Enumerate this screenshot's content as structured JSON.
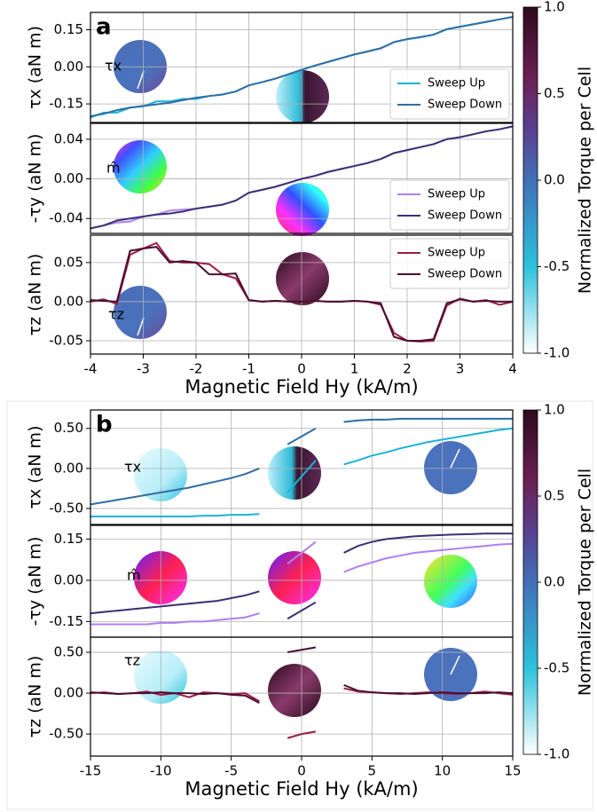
{
  "chart_data": [
    {
      "type": "line",
      "panel_label": "a",
      "ylabel": "τx (aN m)",
      "inset_label": "τx",
      "x": [
        -4,
        -3.75,
        -3.5,
        -3.25,
        -3,
        -2.75,
        -2.5,
        -2.25,
        -2,
        -1.75,
        -1.5,
        -1.25,
        -1,
        -0.75,
        -0.5,
        -0.25,
        0,
        0.25,
        0.5,
        0.75,
        1,
        1.25,
        1.5,
        1.75,
        2,
        2.25,
        2.5,
        2.75,
        3,
        3.25,
        3.5,
        3.75,
        4
      ],
      "series": [
        {
          "name": "Sweep Up",
          "color": "#1ab3d6",
          "values": [
            -0.205,
            -0.185,
            -0.185,
            -0.165,
            -0.16,
            -0.14,
            -0.14,
            -0.13,
            -0.13,
            -0.118,
            -0.112,
            -0.1,
            -0.075,
            -0.062,
            -0.048,
            -0.03,
            -0.012,
            0.005,
            0.02,
            0.035,
            0.05,
            0.062,
            0.075,
            0.1,
            0.112,
            0.12,
            0.13,
            0.152,
            0.162,
            0.172,
            0.182,
            0.192,
            0.202
          ]
        },
        {
          "name": "Sweep Down",
          "color": "#2e6ea6",
          "values": [
            -0.2,
            -0.19,
            -0.175,
            -0.165,
            -0.158,
            -0.152,
            -0.145,
            -0.135,
            -0.125,
            -0.118,
            -0.112,
            -0.1,
            -0.075,
            -0.062,
            -0.048,
            -0.03,
            -0.012,
            0.005,
            0.02,
            0.035,
            0.05,
            0.062,
            0.075,
            0.1,
            0.112,
            0.12,
            0.13,
            0.152,
            0.162,
            0.172,
            0.182,
            0.192,
            0.202
          ]
        }
      ],
      "xlim": [
        -4,
        4
      ],
      "xticks": [
        -4,
        -3,
        -2,
        -1,
        0,
        1,
        2,
        3,
        4
      ],
      "ylim": [
        -0.225,
        0.22
      ],
      "yticks": [
        -0.15,
        {
          "value": 0,
          "label": "0.00"
        },
        0.15
      ],
      "grid": true,
      "legend": "lower right",
      "colorbar": {
        "label": "Normalized Torque per Cell",
        "lim": [
          -1,
          1
        ],
        "ticks": [
          {
            "value": -1,
            "label": "-1.0"
          },
          -0.5,
          {
            "value": 0,
            "label": "0.0"
          },
          0.5,
          {
            "value": 1,
            "label": "1.0"
          }
        ]
      }
    },
    {
      "type": "line",
      "ylabel": "-τy (aN m)",
      "inset_label": "m̂",
      "x": [
        -4,
        -3.75,
        -3.5,
        -3.25,
        -3,
        -2.75,
        -2.5,
        -2.25,
        -2,
        -1.75,
        -1.5,
        -1.25,
        -1,
        -0.75,
        -0.5,
        -0.25,
        0,
        0.25,
        0.5,
        0.75,
        1,
        1.25,
        1.5,
        1.75,
        2,
        2.25,
        2.5,
        2.75,
        3,
        3.25,
        3.5,
        3.75,
        4
      ],
      "series": [
        {
          "name": "Sweep Up",
          "color": "#b07ef0",
          "values": [
            -0.05,
            -0.047,
            -0.044,
            -0.043,
            -0.038,
            -0.036,
            -0.032,
            -0.031,
            -0.03,
            -0.028,
            -0.026,
            -0.022,
            -0.014,
            -0.011,
            -0.008,
            -0.004,
            0.0,
            0.003,
            0.007,
            0.01,
            0.013,
            0.016,
            0.02,
            0.026,
            0.029,
            0.032,
            0.035,
            0.04,
            0.042,
            0.045,
            0.048,
            0.05,
            0.053
          ]
        },
        {
          "name": "Sweep Down",
          "color": "#3b2f73",
          "values": [
            -0.05,
            -0.047,
            -0.042,
            -0.04,
            -0.038,
            -0.036,
            -0.035,
            -0.033,
            -0.03,
            -0.028,
            -0.026,
            -0.022,
            -0.014,
            -0.011,
            -0.008,
            -0.004,
            0.0,
            0.003,
            0.007,
            0.01,
            0.013,
            0.016,
            0.02,
            0.026,
            0.029,
            0.032,
            0.035,
            0.04,
            0.042,
            0.045,
            0.048,
            0.05,
            0.053
          ]
        }
      ],
      "xlim": [
        -4,
        4
      ],
      "xticks": [
        -4,
        -3,
        -2,
        -1,
        0,
        1,
        2,
        3,
        4
      ],
      "ylim": [
        -0.055,
        0.056
      ],
      "yticks": [
        -0.04,
        {
          "value": 0,
          "label": "0.00"
        },
        0.04
      ],
      "grid": true,
      "legend": "lower right"
    },
    {
      "type": "line",
      "ylabel": "τz (aN m)",
      "inset_label": "τz",
      "xlabel": "Magnetic Field Hy (kA/m)",
      "x": [
        -4,
        -3.75,
        -3.5,
        -3.25,
        -3,
        -2.75,
        -2.5,
        -2.25,
        -2,
        -1.75,
        -1.5,
        -1.25,
        -1,
        -0.75,
        -0.5,
        -0.25,
        0,
        0.25,
        0.5,
        0.75,
        1,
        1.25,
        1.5,
        1.75,
        2,
        2.25,
        2.5,
        2.75,
        3,
        3.25,
        3.5,
        3.75,
        4
      ],
      "series": [
        {
          "name": "Sweep Up",
          "color": "#9b1c4a",
          "values": [
            0.0,
            0.003,
            -0.003,
            0.06,
            0.068,
            0.075,
            0.052,
            0.05,
            0.05,
            0.048,
            0.035,
            0.03,
            0.002,
            0.0,
            0.001,
            0.0,
            0.0,
            0.001,
            0.0,
            0.0,
            0.001,
            0.0,
            -0.004,
            -0.04,
            -0.05,
            -0.051,
            -0.05,
            -0.005,
            0.004,
            0.0,
            0.002,
            -0.004,
            0.0
          ]
        },
        {
          "name": "Sweep Down",
          "color": "#4a0f2f",
          "values": [
            0.002,
            0.001,
            0.0,
            0.065,
            0.068,
            0.07,
            0.05,
            0.052,
            0.05,
            0.035,
            0.035,
            0.036,
            0.002,
            0.0,
            0.001,
            0.0,
            0.0,
            0.001,
            0.0,
            0.0,
            0.001,
            0.0,
            -0.002,
            -0.045,
            -0.05,
            -0.05,
            -0.048,
            -0.002,
            0.003,
            0.0,
            0.001,
            0.0,
            0.0
          ]
        }
      ],
      "xlim": [
        -4,
        4
      ],
      "xticks": [
        -4,
        -3,
        -2,
        -1,
        0,
        1,
        2,
        3,
        4
      ],
      "ylim": [
        -0.067,
        0.085
      ],
      "yticks": [
        -0.05,
        {
          "value": 0,
          "label": "0.00"
        },
        0.05
      ],
      "grid": true,
      "legend": "upper right"
    },
    {
      "type": "line",
      "panel_label": "b",
      "ylabel": "τx (aN m)",
      "inset_label": "τx",
      "x": [
        -15,
        -14,
        -13,
        -12,
        -11,
        -10,
        -9,
        -8,
        -7,
        -6,
        -5,
        -4,
        -3,
        -2,
        -1,
        0,
        1,
        2,
        3,
        4,
        5,
        6,
        7,
        8,
        9,
        10,
        11,
        12,
        13,
        14,
        15
      ],
      "series": [
        {
          "color": "#1ab3d6",
          "values": [
            -0.6,
            -0.6,
            -0.6,
            -0.6,
            -0.6,
            -0.6,
            -0.6,
            -0.6,
            -0.59,
            -0.59,
            -0.58,
            -0.58,
            -0.57,
            null,
            -0.3,
            -0.1,
            0.1,
            null,
            0.05,
            0.1,
            0.16,
            0.2,
            0.25,
            0.29,
            0.33,
            0.36,
            0.39,
            0.42,
            0.45,
            0.48,
            0.5
          ]
        },
        {
          "color": "#2e6ea6",
          "values": [
            -0.45,
            -0.42,
            -0.39,
            -0.36,
            -0.33,
            -0.3,
            -0.27,
            -0.24,
            -0.2,
            -0.16,
            -0.12,
            -0.07,
            0.0,
            null,
            0.3,
            0.4,
            0.5,
            null,
            0.58,
            0.6,
            0.61,
            0.61,
            0.62,
            0.62,
            0.62,
            0.62,
            0.62,
            0.62,
            0.62,
            0.62,
            0.62
          ]
        }
      ],
      "xlim": [
        -15,
        15
      ],
      "xticks": [
        -15,
        -10,
        -5,
        0,
        5,
        10,
        15
      ],
      "ylim": [
        -0.7,
        0.73
      ],
      "yticks": [
        {
          "value": -0.5,
          "label": "-0.50"
        },
        {
          "value": 0,
          "label": "0.00"
        },
        {
          "value": 0.5,
          "label": "0.50"
        }
      ],
      "grid": true,
      "colorbar": {
        "label": "Normalized Torque per Cell",
        "lim": [
          -1,
          1
        ],
        "ticks": [
          {
            "value": -1,
            "label": "-1.0"
          },
          -0.5,
          {
            "value": 0,
            "label": "0.0"
          },
          0.5,
          {
            "value": 1,
            "label": "1.0"
          }
        ]
      }
    },
    {
      "type": "line",
      "ylabel": "-τy (aN m)",
      "inset_label": "m̂",
      "x": [
        -15,
        -14,
        -13,
        -12,
        -11,
        -10,
        -9,
        -8,
        -7,
        -6,
        -5,
        -4,
        -3,
        -2,
        -1,
        0,
        1,
        2,
        3,
        4,
        5,
        6,
        7,
        8,
        9,
        10,
        11,
        12,
        13,
        14,
        15
      ],
      "series": [
        {
          "color": "#b07ef0",
          "values": [
            -0.16,
            -0.16,
            -0.16,
            -0.16,
            -0.16,
            -0.155,
            -0.155,
            -0.15,
            -0.15,
            -0.145,
            -0.14,
            -0.135,
            -0.12,
            null,
            0.06,
            0.1,
            0.14,
            null,
            0.03,
            0.05,
            0.065,
            0.08,
            0.09,
            0.1,
            0.105,
            0.11,
            0.115,
            0.12,
            0.125,
            0.13,
            0.133
          ]
        },
        {
          "color": "#3b2f73",
          "values": [
            -0.12,
            -0.115,
            -0.11,
            -0.105,
            -0.1,
            -0.095,
            -0.09,
            -0.085,
            -0.08,
            -0.075,
            -0.065,
            -0.055,
            -0.04,
            null,
            -0.14,
            -0.11,
            -0.08,
            null,
            0.1,
            0.125,
            0.14,
            0.15,
            0.155,
            0.16,
            0.163,
            0.165,
            0.167,
            0.168,
            0.17,
            0.17,
            0.17
          ]
        }
      ],
      "xlim": [
        -15,
        15
      ],
      "xticks": [
        -15,
        -10,
        -5,
        0,
        5,
        10,
        15
      ],
      "ylim": [
        -0.207,
        0.2
      ],
      "yticks": [
        -0.15,
        {
          "value": 0,
          "label": "0.00"
        },
        0.15
      ],
      "grid": true
    },
    {
      "type": "line",
      "ylabel": "τz (aN m)",
      "inset_label": "τz",
      "xlabel": "Magnetic Field Hy (kA/m)",
      "x": [
        -15,
        -14,
        -13,
        -12,
        -11,
        -10,
        -9,
        -8,
        -7,
        -6,
        -5,
        -4,
        -3,
        -2,
        -1,
        0,
        1,
        2,
        3,
        4,
        5,
        6,
        7,
        8,
        9,
        10,
        11,
        12,
        13,
        14,
        15
      ],
      "series": [
        {
          "color": "#9b1c4a",
          "values": [
            0.0,
            0.01,
            -0.01,
            0.0,
            0.02,
            -0.02,
            0.0,
            -0.05,
            0.01,
            0.0,
            -0.01,
            0.0,
            -0.1,
            null,
            -0.55,
            -0.5,
            -0.47,
            null,
            0.06,
            0.02,
            0.01,
            0.0,
            -0.01,
            0.0,
            0.01,
            0.0,
            -0.01,
            0.0,
            0.02,
            0.0,
            -0.02
          ]
        },
        {
          "color": "#4a0f2f",
          "values": [
            0.01,
            0.0,
            -0.01,
            0.0,
            0.0,
            0.01,
            0.0,
            0.0,
            -0.01,
            0.0,
            -0.02,
            -0.03,
            -0.12,
            null,
            0.5,
            0.53,
            0.56,
            null,
            0.1,
            0.03,
            0.01,
            0.0,
            0.0,
            -0.01,
            0.0,
            0.01,
            0.0,
            0.0,
            0.0,
            0.01,
            0.0
          ]
        }
      ],
      "xlim": [
        -15,
        15
      ],
      "xticks": [
        -15,
        -10,
        -5,
        0,
        5,
        10,
        15
      ],
      "ylim": [
        -0.77,
        0.685
      ],
      "yticks": [
        {
          "value": -0.5,
          "label": "-0.50"
        },
        {
          "value": 0,
          "label": "0.00"
        },
        {
          "value": 0.5,
          "label": "0.50"
        }
      ],
      "grid": true
    }
  ]
}
